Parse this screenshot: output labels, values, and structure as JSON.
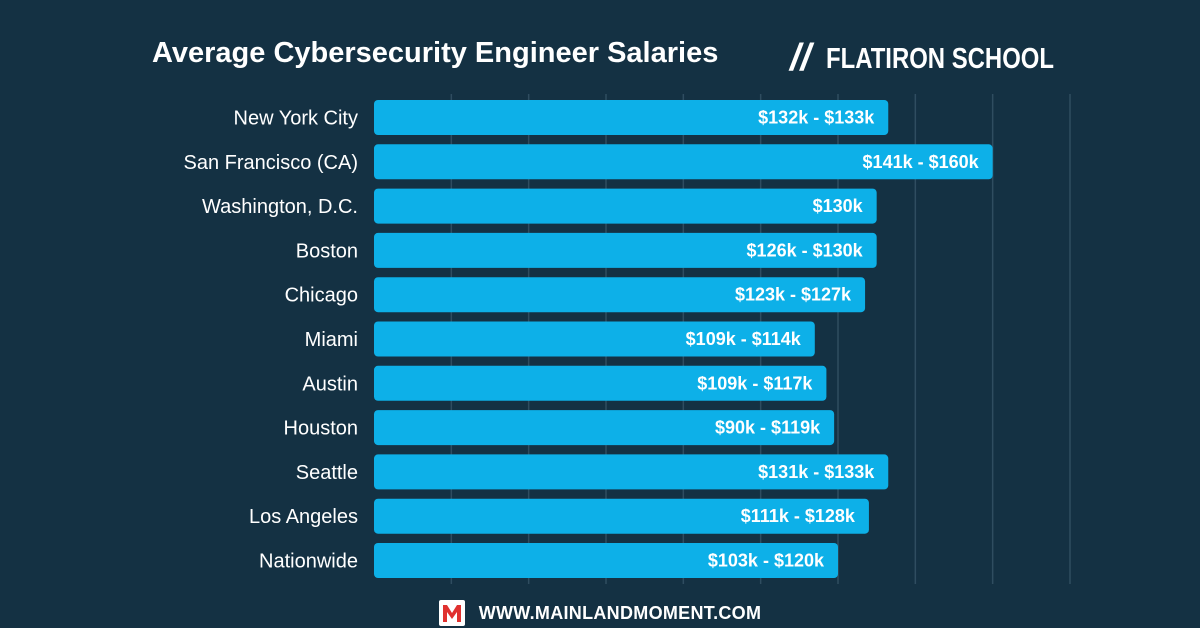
{
  "header": {
    "title": "Average Cybersecurity Engineer Salaries",
    "brand_mark": "//",
    "brand_name": "FLATIRON SCHOOL"
  },
  "colors": {
    "background": "#143143",
    "bar": "#0db0e8",
    "gridline": "#2f4d60",
    "text": "#ffffff",
    "footer_logo": "#e0312f"
  },
  "chart_data": {
    "type": "bar",
    "orientation": "horizontal",
    "title": "Average Cybersecurity Engineer Salaries",
    "xlabel": "",
    "ylabel": "",
    "xlim": [
      0,
      180
    ],
    "grid": true,
    "categories": [
      "New York City",
      "San Francisco (CA)",
      "Washington, D.C.",
      "Boston",
      "Chicago",
      "Miami",
      "Austin",
      "Houston",
      "Seattle",
      "Los Angeles",
      "Nationwide"
    ],
    "values": [
      133,
      160,
      130,
      130,
      127,
      114,
      117,
      119,
      133,
      128,
      120
    ],
    "data_labels": [
      "$132k - $133k",
      "$141k - $160k",
      "$130k",
      "$126k - $130k",
      "$123k - $127k",
      "$109k - $114k",
      "$109k - $117k",
      "$90k - $119k",
      "$131k - $133k",
      "$111k - $128k",
      "$103k - $120k"
    ]
  },
  "footer": {
    "logo_letter": "M",
    "site": "WWW.MAINLANDMOMENT.COM"
  }
}
